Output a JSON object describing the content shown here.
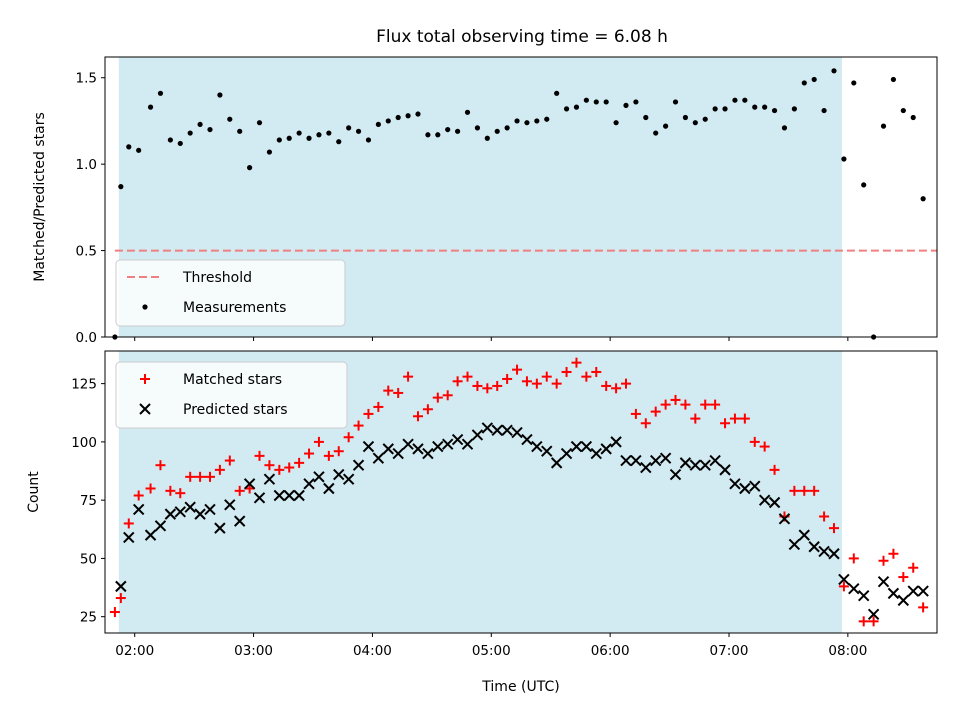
{
  "title": "Flux total observing time = 6.08 h",
  "colors": {
    "shade": "#add8e6",
    "threshold": "#f08080",
    "measurement": "#000000",
    "matched": "#ff0000",
    "predicted": "#000000"
  },
  "chart_data": [
    {
      "type": "scatter",
      "ylabel": "Matched/Predicted stars",
      "xlabel": "",
      "xlim": [
        "01:45",
        "08:45"
      ],
      "ylim": [
        0,
        1.62
      ],
      "xticks": [
        "02:00",
        "03:00",
        "04:00",
        "05:00",
        "06:00",
        "07:00",
        "08:00"
      ],
      "yticks": [
        0.0,
        0.5,
        1.0,
        1.5
      ],
      "shaded_span": [
        "01:52",
        "07:57"
      ],
      "legend_position": "lower-left",
      "threshold": {
        "name": "Threshold",
        "value": 0.5,
        "x_range": [
          "01:50",
          "08:45"
        ]
      },
      "series": [
        {
          "name": "Measurements",
          "points": [
            [
              "01:50",
              0.0
            ],
            [
              "01:53",
              0.87
            ],
            [
              "01:57",
              1.1
            ],
            [
              "02:02",
              1.08
            ],
            [
              "02:08",
              1.33
            ],
            [
              "02:13",
              1.41
            ],
            [
              "02:18",
              1.14
            ],
            [
              "02:23",
              1.12
            ],
            [
              "02:28",
              1.18
            ],
            [
              "02:33",
              1.23
            ],
            [
              "02:38",
              1.2
            ],
            [
              "02:43",
              1.4
            ],
            [
              "02:48",
              1.26
            ],
            [
              "02:53",
              1.19
            ],
            [
              "02:58",
              0.98
            ],
            [
              "03:03",
              1.24
            ],
            [
              "03:08",
              1.07
            ],
            [
              "03:13",
              1.14
            ],
            [
              "03:18",
              1.15
            ],
            [
              "03:23",
              1.18
            ],
            [
              "03:28",
              1.15
            ],
            [
              "03:33",
              1.17
            ],
            [
              "03:38",
              1.18
            ],
            [
              "03:43",
              1.13
            ],
            [
              "03:48",
              1.21
            ],
            [
              "03:53",
              1.19
            ],
            [
              "03:58",
              1.14
            ],
            [
              "04:03",
              1.23
            ],
            [
              "04:08",
              1.25
            ],
            [
              "04:13",
              1.27
            ],
            [
              "04:18",
              1.28
            ],
            [
              "04:23",
              1.29
            ],
            [
              "04:28",
              1.17
            ],
            [
              "04:33",
              1.17
            ],
            [
              "04:38",
              1.2
            ],
            [
              "04:43",
              1.19
            ],
            [
              "04:48",
              1.3
            ],
            [
              "04:53",
              1.21
            ],
            [
              "04:58",
              1.15
            ],
            [
              "05:03",
              1.19
            ],
            [
              "05:08",
              1.21
            ],
            [
              "05:13",
              1.25
            ],
            [
              "05:18",
              1.24
            ],
            [
              "05:23",
              1.25
            ],
            [
              "05:28",
              1.26
            ],
            [
              "05:33",
              1.41
            ],
            [
              "05:38",
              1.32
            ],
            [
              "05:43",
              1.33
            ],
            [
              "05:48",
              1.37
            ],
            [
              "05:53",
              1.36
            ],
            [
              "05:58",
              1.36
            ],
            [
              "06:03",
              1.24
            ],
            [
              "06:08",
              1.34
            ],
            [
              "06:13",
              1.36
            ],
            [
              "06:18",
              1.27
            ],
            [
              "06:23",
              1.18
            ],
            [
              "06:28",
              1.22
            ],
            [
              "06:33",
              1.36
            ],
            [
              "06:38",
              1.27
            ],
            [
              "06:43",
              1.24
            ],
            [
              "06:48",
              1.26
            ],
            [
              "06:53",
              1.32
            ],
            [
              "06:58",
              1.32
            ],
            [
              "07:03",
              1.37
            ],
            [
              "07:08",
              1.37
            ],
            [
              "07:13",
              1.33
            ],
            [
              "07:18",
              1.33
            ],
            [
              "07:23",
              1.31
            ],
            [
              "07:28",
              1.21
            ],
            [
              "07:33",
              1.32
            ],
            [
              "07:38",
              1.47
            ],
            [
              "07:43",
              1.49
            ],
            [
              "07:48",
              1.31
            ],
            [
              "07:53",
              1.54
            ],
            [
              "07:58",
              1.03
            ],
            [
              "08:03",
              1.47
            ],
            [
              "08:08",
              0.88
            ],
            [
              "08:13",
              0.0
            ],
            [
              "08:18",
              1.22
            ],
            [
              "08:23",
              1.49
            ],
            [
              "08:28",
              1.31
            ],
            [
              "08:33",
              1.27
            ],
            [
              "08:38",
              0.8
            ]
          ]
        }
      ]
    },
    {
      "type": "scatter",
      "ylabel": "Count",
      "xlabel": "Time (UTC)",
      "xlim": [
        "01:45",
        "08:45"
      ],
      "ylim": [
        18,
        139
      ],
      "xticks": [
        "02:00",
        "03:00",
        "04:00",
        "05:00",
        "06:00",
        "07:00",
        "08:00"
      ],
      "yticks": [
        25,
        50,
        75,
        100,
        125
      ],
      "shaded_span": [
        "01:52",
        "07:57"
      ],
      "legend_position": "upper-left",
      "series": [
        {
          "name": "Matched stars",
          "marker": "plus",
          "points": [
            [
              "01:50",
              27
            ],
            [
              "01:53",
              33
            ],
            [
              "01:57",
              65
            ],
            [
              "02:02",
              77
            ],
            [
              "02:08",
              80
            ],
            [
              "02:13",
              90
            ],
            [
              "02:18",
              79
            ],
            [
              "02:23",
              78
            ],
            [
              "02:28",
              85
            ],
            [
              "02:33",
              85
            ],
            [
              "02:38",
              85
            ],
            [
              "02:43",
              88
            ],
            [
              "02:48",
              92
            ],
            [
              "02:53",
              79
            ],
            [
              "02:58",
              80
            ],
            [
              "03:03",
              94
            ],
            [
              "03:08",
              90
            ],
            [
              "03:13",
              88
            ],
            [
              "03:18",
              89
            ],
            [
              "03:23",
              91
            ],
            [
              "03:28",
              95
            ],
            [
              "03:33",
              100
            ],
            [
              "03:38",
              94
            ],
            [
              "03:43",
              96
            ],
            [
              "03:48",
              102
            ],
            [
              "03:53",
              107
            ],
            [
              "03:58",
              112
            ],
            [
              "04:03",
              115
            ],
            [
              "04:08",
              122
            ],
            [
              "04:13",
              121
            ],
            [
              "04:18",
              128
            ],
            [
              "04:23",
              111
            ],
            [
              "04:28",
              114
            ],
            [
              "04:33",
              119
            ],
            [
              "04:38",
              120
            ],
            [
              "04:43",
              126
            ],
            [
              "04:48",
              128
            ],
            [
              "04:53",
              124
            ],
            [
              "04:58",
              123
            ],
            [
              "05:03",
              124
            ],
            [
              "05:08",
              127
            ],
            [
              "05:13",
              131
            ],
            [
              "05:18",
              126
            ],
            [
              "05:23",
              125
            ],
            [
              "05:28",
              128
            ],
            [
              "05:33",
              125
            ],
            [
              "05:38",
              130
            ],
            [
              "05:43",
              134
            ],
            [
              "05:48",
              128
            ],
            [
              "05:53",
              130
            ],
            [
              "05:58",
              124
            ],
            [
              "06:03",
              123
            ],
            [
              "06:08",
              125
            ],
            [
              "06:13",
              112
            ],
            [
              "06:18",
              108
            ],
            [
              "06:23",
              113
            ],
            [
              "06:28",
              116
            ],
            [
              "06:33",
              118
            ],
            [
              "06:38",
              116
            ],
            [
              "06:43",
              110
            ],
            [
              "06:48",
              116
            ],
            [
              "06:53",
              116
            ],
            [
              "06:58",
              108
            ],
            [
              "07:03",
              110
            ],
            [
              "07:08",
              110
            ],
            [
              "07:13",
              100
            ],
            [
              "07:18",
              98
            ],
            [
              "07:23",
              88
            ],
            [
              "07:28",
              68
            ],
            [
              "07:33",
              79
            ],
            [
              "07:38",
              79
            ],
            [
              "07:43",
              79
            ],
            [
              "07:48",
              68
            ],
            [
              "07:53",
              63
            ],
            [
              "07:58",
              38
            ],
            [
              "08:03",
              50
            ],
            [
              "08:08",
              23
            ],
            [
              "08:13",
              23
            ],
            [
              "08:18",
              49
            ],
            [
              "08:23",
              52
            ],
            [
              "08:28",
              42
            ],
            [
              "08:33",
              46
            ],
            [
              "08:38",
              29
            ]
          ]
        },
        {
          "name": "Predicted stars",
          "marker": "x",
          "points": [
            [
              "01:53",
              38
            ],
            [
              "01:57",
              59
            ],
            [
              "02:02",
              71
            ],
            [
              "02:08",
              60
            ],
            [
              "02:13",
              64
            ],
            [
              "02:18",
              69
            ],
            [
              "02:23",
              70
            ],
            [
              "02:28",
              72
            ],
            [
              "02:33",
              69
            ],
            [
              "02:38",
              71
            ],
            [
              "02:43",
              63
            ],
            [
              "02:48",
              73
            ],
            [
              "02:53",
              66
            ],
            [
              "02:58",
              82
            ],
            [
              "03:03",
              76
            ],
            [
              "03:08",
              84
            ],
            [
              "03:13",
              77
            ],
            [
              "03:18",
              77
            ],
            [
              "03:23",
              77
            ],
            [
              "03:28",
              82
            ],
            [
              "03:33",
              85
            ],
            [
              "03:38",
              80
            ],
            [
              "03:43",
              86
            ],
            [
              "03:48",
              84
            ],
            [
              "03:53",
              90
            ],
            [
              "03:58",
              98
            ],
            [
              "04:03",
              93
            ],
            [
              "04:08",
              97
            ],
            [
              "04:13",
              95
            ],
            [
              "04:18",
              99
            ],
            [
              "04:23",
              97
            ],
            [
              "04:28",
              95
            ],
            [
              "04:33",
              98
            ],
            [
              "04:38",
              99
            ],
            [
              "04:43",
              101
            ],
            [
              "04:48",
              99
            ],
            [
              "04:53",
              103
            ],
            [
              "04:58",
              106
            ],
            [
              "05:03",
              105
            ],
            [
              "05:08",
              105
            ],
            [
              "05:13",
              104
            ],
            [
              "05:18",
              101
            ],
            [
              "05:23",
              98
            ],
            [
              "05:28",
              96
            ],
            [
              "05:33",
              91
            ],
            [
              "05:38",
              95
            ],
            [
              "05:43",
              98
            ],
            [
              "05:48",
              98
            ],
            [
              "05:53",
              95
            ],
            [
              "05:58",
              97
            ],
            [
              "06:03",
              100
            ],
            [
              "06:08",
              92
            ],
            [
              "06:13",
              92
            ],
            [
              "06:18",
              89
            ],
            [
              "06:23",
              92
            ],
            [
              "06:28",
              93
            ],
            [
              "06:33",
              86
            ],
            [
              "06:38",
              91
            ],
            [
              "06:43",
              90
            ],
            [
              "06:48",
              90
            ],
            [
              "06:53",
              92
            ],
            [
              "06:58",
              88
            ],
            [
              "07:03",
              82
            ],
            [
              "07:08",
              80
            ],
            [
              "07:13",
              81
            ],
            [
              "07:18",
              75
            ],
            [
              "07:23",
              74
            ],
            [
              "07:28",
              67
            ],
            [
              "07:33",
              56
            ],
            [
              "07:38",
              60
            ],
            [
              "07:43",
              55
            ],
            [
              "07:48",
              53
            ],
            [
              "07:53",
              52
            ],
            [
              "07:58",
              41
            ],
            [
              "08:03",
              37
            ],
            [
              "08:08",
              34
            ],
            [
              "08:13",
              26
            ],
            [
              "08:18",
              40
            ],
            [
              "08:23",
              35
            ],
            [
              "08:28",
              32
            ],
            [
              "08:33",
              36
            ],
            [
              "08:38",
              36
            ]
          ]
        }
      ]
    }
  ]
}
